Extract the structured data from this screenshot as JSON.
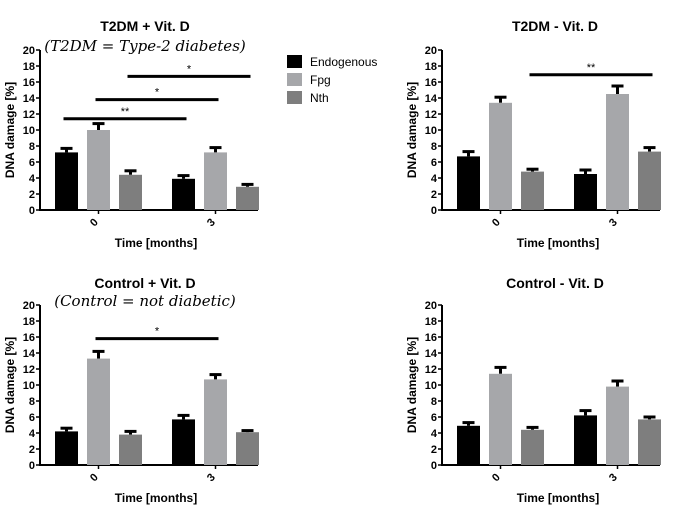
{
  "legend": [
    {
      "name": "Endogenous",
      "color": "#000000"
    },
    {
      "name": "Fpg",
      "color": "#a6a7aa"
    },
    {
      "name": "Nth",
      "color": "#7e7e7e"
    }
  ],
  "chart_data": [
    {
      "type": "bar",
      "title": "T2DM + Vit. D",
      "annotation": "(T2DM = Type-2 diabetes)",
      "xlabel": "Time [months]",
      "ylabel": "DNA damage [%]",
      "ylim": [
        0,
        20
      ],
      "yticks": [
        0,
        2,
        4,
        6,
        8,
        10,
        12,
        14,
        16,
        18,
        20
      ],
      "categories": [
        "0",
        "3"
      ],
      "series": [
        {
          "name": "Endogenous",
          "values": [
            7.2,
            3.9
          ],
          "errors": [
            0.5,
            0.4
          ]
        },
        {
          "name": "Fpg",
          "values": [
            10.0,
            7.2
          ],
          "errors": [
            0.8,
            0.6
          ]
        },
        {
          "name": "Nth",
          "values": [
            4.4,
            2.9
          ],
          "errors": [
            0.5,
            0.3
          ]
        }
      ],
      "significance": [
        {
          "label": "**",
          "series": 0,
          "level": 11.4
        },
        {
          "label": "*",
          "series": 1,
          "level": 13.8
        },
        {
          "label": "*",
          "series": 2,
          "level": 16.7
        }
      ]
    },
    {
      "type": "bar",
      "title": "T2DM - Vit. D",
      "xlabel": "Time [months]",
      "ylabel": "DNA damage [%]",
      "ylim": [
        0,
        20
      ],
      "yticks": [
        0,
        2,
        4,
        6,
        8,
        10,
        12,
        14,
        16,
        18,
        20
      ],
      "categories": [
        "0",
        "3"
      ],
      "series": [
        {
          "name": "Endogenous",
          "values": [
            6.7,
            4.5
          ],
          "errors": [
            0.6,
            0.5
          ]
        },
        {
          "name": "Fpg",
          "values": [
            13.4,
            14.5
          ],
          "errors": [
            0.7,
            1.0
          ]
        },
        {
          "name": "Nth",
          "values": [
            4.8,
            7.3
          ],
          "errors": [
            0.3,
            0.5
          ]
        }
      ],
      "significance": [
        {
          "label": "**",
          "series": 2,
          "level": 16.9
        }
      ]
    },
    {
      "type": "bar",
      "title": "Control + Vit. D",
      "annotation": "(Control = not diabetic)",
      "xlabel": "Time [months]",
      "ylabel": "DNA damage [%]",
      "ylim": [
        0,
        20
      ],
      "yticks": [
        0,
        2,
        4,
        6,
        8,
        10,
        12,
        14,
        16,
        18,
        20
      ],
      "categories": [
        "0",
        "3"
      ],
      "series": [
        {
          "name": "Endogenous",
          "values": [
            4.2,
            5.7
          ],
          "errors": [
            0.4,
            0.5
          ]
        },
        {
          "name": "Fpg",
          "values": [
            13.3,
            10.7
          ],
          "errors": [
            0.9,
            0.6
          ]
        },
        {
          "name": "Nth",
          "values": [
            3.8,
            4.1
          ],
          "errors": [
            0.4,
            0.2
          ]
        }
      ],
      "significance": [
        {
          "label": "*",
          "series": 1,
          "level": 15.8
        }
      ]
    },
    {
      "type": "bar",
      "title": "Control - Vit. D",
      "xlabel": "Time [months]",
      "ylabel": "DNA damage [%]",
      "ylim": [
        0,
        20
      ],
      "yticks": [
        0,
        2,
        4,
        6,
        8,
        10,
        12,
        14,
        16,
        18,
        20
      ],
      "categories": [
        "0",
        "3"
      ],
      "series": [
        {
          "name": "Endogenous",
          "values": [
            4.9,
            6.2
          ],
          "errors": [
            0.4,
            0.6
          ]
        },
        {
          "name": "Fpg",
          "values": [
            11.4,
            9.8
          ],
          "errors": [
            0.8,
            0.7
          ]
        },
        {
          "name": "Nth",
          "values": [
            4.4,
            5.7
          ],
          "errors": [
            0.3,
            0.3
          ]
        }
      ],
      "significance": []
    }
  ]
}
